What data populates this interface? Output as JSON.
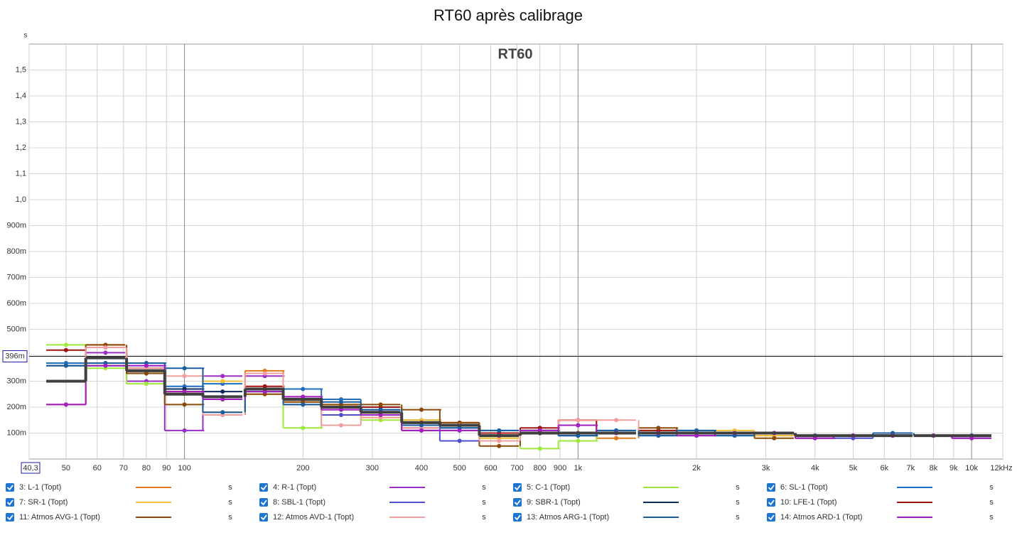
{
  "chart_data": {
    "type": "step",
    "title": "RT60 après calibrage",
    "inner_title": "RT60",
    "y_unit": "s",
    "log_x": true,
    "grid": true,
    "xlim": [
      40.3,
      12000
    ],
    "ylim": [
      0,
      1.6
    ],
    "xticks": [
      {
        "value": 40.3,
        "label": "40,3"
      },
      50,
      60,
      70,
      80,
      90,
      100,
      200,
      300,
      400,
      500,
      600,
      700,
      800,
      900,
      {
        "value": 1000,
        "label": "1k"
      },
      {
        "value": 2000,
        "label": "2k"
      },
      {
        "value": 3000,
        "label": "3k"
      },
      {
        "value": 4000,
        "label": "4k"
      },
      {
        "value": 5000,
        "label": "5k"
      },
      {
        "value": 6000,
        "label": "6k"
      },
      {
        "value": 7000,
        "label": "7k"
      },
      {
        "value": 8000,
        "label": "8k"
      },
      {
        "value": 9000,
        "label": "9k"
      },
      {
        "value": 10000,
        "label": "10k"
      },
      {
        "value": 12000,
        "label": "12kHz"
      }
    ],
    "yticks": [
      {
        "value": 0.1,
        "label": "100m"
      },
      {
        "value": 0.2,
        "label": "200m"
      },
      {
        "value": 0.3,
        "label": "300m"
      },
      {
        "value": 0.4,
        "label": "400m"
      },
      {
        "value": 0.5,
        "label": "500m"
      },
      {
        "value": 0.6,
        "label": "600m"
      },
      {
        "value": 0.7,
        "label": "700m"
      },
      {
        "value": 0.8,
        "label": "800m"
      },
      {
        "value": 0.9,
        "label": "900m"
      },
      {
        "value": 1.0,
        "label": "1,0"
      },
      {
        "value": 1.1,
        "label": "1,1"
      },
      {
        "value": 1.2,
        "label": "1,2"
      },
      {
        "value": 1.3,
        "label": "1,3"
      },
      {
        "value": 1.4,
        "label": "1,4"
      },
      {
        "value": 1.5,
        "label": "1,5"
      }
    ],
    "cursor": {
      "value": 0.396,
      "label": "396m"
    },
    "x": [
      50,
      63,
      80,
      100,
      125,
      160,
      200,
      250,
      315,
      400,
      500,
      630,
      800,
      1000,
      1250,
      1600,
      2000,
      2500,
      3150,
      4000,
      5000,
      6300,
      8000,
      10000
    ],
    "series": [
      {
        "name": "3: L-1 (Topt)",
        "unit": "s",
        "color": "#dd7a1a",
        "values": [
          0.37,
          0.44,
          0.33,
          0.26,
          0.18,
          0.34,
          0.22,
          0.2,
          0.18,
          0.14,
          0.13,
          0.07,
          0.1,
          0.15,
          0.08,
          0.1,
          0.1,
          0.1,
          0.09,
          0.09,
          0.09,
          0.09,
          0.09,
          0.09
        ]
      },
      {
        "name": "4: R-1 (Topt)",
        "unit": "s",
        "color": "#9a2ec4",
        "values": [
          0.21,
          0.41,
          0.3,
          0.11,
          0.32,
          0.32,
          0.24,
          0.19,
          0.17,
          0.11,
          0.11,
          0.09,
          0.11,
          0.13,
          0.1,
          0.1,
          0.09,
          0.1,
          0.1,
          0.08,
          0.09,
          0.09,
          0.09,
          0.08
        ]
      },
      {
        "name": "5: C-1 (Topt)",
        "unit": "s",
        "color": "#9ee83a",
        "values": [
          0.44,
          0.35,
          0.29,
          0.25,
          0.3,
          0.26,
          0.12,
          0.2,
          0.15,
          0.15,
          0.13,
          0.08,
          0.04,
          0.07,
          0.1,
          0.11,
          0.1,
          0.1,
          0.1,
          0.09,
          0.09,
          0.09,
          0.09,
          0.09
        ]
      },
      {
        "name": "6: SL-1 (Topt)",
        "unit": "s",
        "color": "#1f6fc0",
        "values": [
          0.37,
          0.36,
          0.37,
          0.28,
          0.29,
          0.27,
          0.27,
          0.23,
          0.19,
          0.15,
          0.12,
          0.11,
          0.11,
          0.09,
          0.11,
          0.09,
          0.11,
          0.09,
          0.1,
          0.09,
          0.09,
          0.1,
          0.09,
          0.09
        ]
      },
      {
        "name": "7: SR-1 (Topt)",
        "unit": "s",
        "color": "#f4c03c",
        "values": [
          0.36,
          0.36,
          0.35,
          0.27,
          0.3,
          0.25,
          0.23,
          0.21,
          0.16,
          0.15,
          0.13,
          0.08,
          0.1,
          0.1,
          0.1,
          0.1,
          0.1,
          0.11,
          0.09,
          0.09,
          0.09,
          0.09,
          0.09,
          0.09
        ]
      },
      {
        "name": "8: SBL-1 (Topt)",
        "unit": "s",
        "color": "#4f4fd0",
        "values": [
          0.36,
          0.37,
          0.36,
          0.27,
          0.24,
          0.26,
          0.21,
          0.17,
          0.17,
          0.12,
          0.07,
          0.09,
          0.1,
          0.09,
          0.1,
          0.1,
          0.1,
          0.1,
          0.1,
          0.09,
          0.08,
          0.09,
          0.09,
          0.09
        ]
      },
      {
        "name": "9: SBR-1 (Topt)",
        "unit": "s",
        "color": "#0c2a5c",
        "values": [
          0.36,
          0.36,
          0.35,
          0.27,
          0.26,
          0.27,
          0.23,
          0.2,
          0.18,
          0.14,
          0.13,
          0.09,
          0.1,
          0.1,
          0.1,
          0.1,
          0.1,
          0.1,
          0.1,
          0.09,
          0.09,
          0.09,
          0.09,
          0.09
        ]
      },
      {
        "name": "10: LFE-1 (Topt)",
        "unit": "s",
        "color": "#a01212",
        "values": [
          0.42,
          0.43,
          0.33,
          0.26,
          0.23,
          0.28,
          0.23,
          0.2,
          0.2,
          0.14,
          0.14,
          0.1,
          0.12,
          0.15,
          0.1,
          0.11,
          0.1,
          0.1,
          0.1,
          0.09,
          0.09,
          0.09,
          0.09,
          0.09
        ]
      },
      {
        "name": "11: Atmos AVG-1 (Topt)",
        "unit": "s",
        "color": "#8a4a06",
        "values": [
          0.21,
          0.44,
          0.33,
          0.21,
          0.17,
          0.25,
          0.22,
          0.21,
          0.21,
          0.19,
          0.14,
          0.05,
          0.11,
          0.1,
          0.1,
          0.12,
          0.1,
          0.1,
          0.08,
          0.09,
          0.09,
          0.09,
          0.09,
          0.09
        ]
      },
      {
        "name": "12: Atmos AVD-1 (Topt)",
        "unit": "s",
        "color": "#f29e9e",
        "values": [
          0.21,
          0.43,
          0.35,
          0.32,
          0.17,
          0.33,
          0.24,
          0.13,
          0.16,
          0.12,
          0.13,
          0.07,
          0.11,
          0.15,
          0.15,
          0.1,
          0.1,
          0.1,
          0.1,
          0.09,
          0.09,
          0.09,
          0.09,
          0.09
        ]
      },
      {
        "name": "13: Atmos ARG-1 (Topt)",
        "unit": "s",
        "color": "#1a5e9e",
        "values": [
          0.36,
          0.37,
          0.37,
          0.35,
          0.18,
          0.26,
          0.21,
          0.22,
          0.19,
          0.13,
          0.12,
          0.11,
          0.11,
          0.09,
          0.11,
          0.09,
          0.11,
          0.09,
          0.1,
          0.09,
          0.09,
          0.1,
          0.09,
          0.09
        ]
      },
      {
        "name": "14: Atmos ARD-1 (Topt)",
        "unit": "s",
        "color": "#a41fc0",
        "values": [
          0.21,
          0.36,
          0.36,
          0.26,
          0.23,
          0.26,
          0.24,
          0.19,
          0.17,
          0.11,
          0.11,
          0.09,
          0.11,
          0.13,
          0.1,
          0.1,
          0.09,
          0.1,
          0.1,
          0.08,
          0.09,
          0.09,
          0.09,
          0.08
        ]
      },
      {
        "color": "#404040",
        "values": [
          0.3,
          0.39,
          0.34,
          0.25,
          0.24,
          0.27,
          0.23,
          0.2,
          0.18,
          0.14,
          0.13,
          0.09,
          0.1,
          0.1,
          0.1,
          0.1,
          0.1,
          0.1,
          0.1,
          0.09,
          0.09,
          0.09,
          0.09,
          0.09
        ]
      }
    ]
  }
}
